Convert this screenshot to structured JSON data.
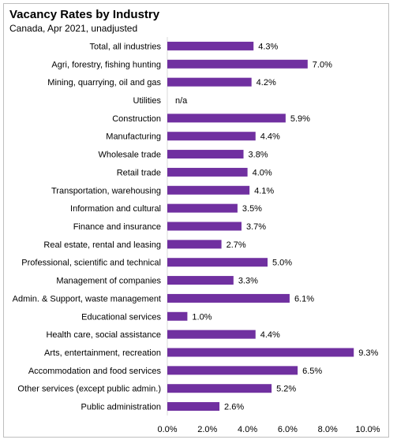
{
  "chart_data": {
    "type": "bar",
    "orientation": "horizontal",
    "title": "Vacancy Rates by Industry",
    "subtitle": "Canada, Apr 2021, unadjusted",
    "categories": [
      "Total, all industries",
      "Agri, forestry, fishing hunting",
      "Mining, quarrying, oil and gas",
      "Utilities",
      "Construction",
      "Manufacturing",
      "Wholesale trade",
      "Retail trade",
      "Transportation, warehousing",
      "Information and cultural",
      "Finance and insurance",
      "Real estate, rental and leasing",
      "Professional, scientific and technical",
      "Management of companies",
      "Admin. & Support, waste management",
      "Educational services",
      "Health care, social assistance",
      "Arts, entertainment, recreation",
      "Accommodation and food services",
      "Other services (except public admin.)",
      "Public administration"
    ],
    "values": [
      4.3,
      7.0,
      4.2,
      null,
      5.9,
      4.4,
      3.8,
      4.0,
      4.1,
      3.5,
      3.7,
      2.7,
      5.0,
      3.3,
      6.1,
      1.0,
      4.4,
      9.3,
      6.5,
      5.2,
      2.6
    ],
    "data_labels": [
      "4.3%",
      "7.0%",
      "4.2%",
      "n/a",
      "5.9%",
      "4.4%",
      "3.8%",
      "4.0%",
      "4.1%",
      "3.5%",
      "3.7%",
      "2.7%",
      "5.0%",
      "3.3%",
      "6.1%",
      "1.0%",
      "4.4%",
      "9.3%",
      "6.5%",
      "5.2%",
      "2.6%"
    ],
    "xlim": [
      0,
      10
    ],
    "x_ticks": [
      "0.0%",
      "2.0%",
      "4.0%",
      "6.0%",
      "8.0%",
      "10.0%"
    ],
    "x_tick_values": [
      0,
      2,
      4,
      6,
      8,
      10
    ],
    "grid": false,
    "legend": "none",
    "bar_color": "#7030a0"
  }
}
